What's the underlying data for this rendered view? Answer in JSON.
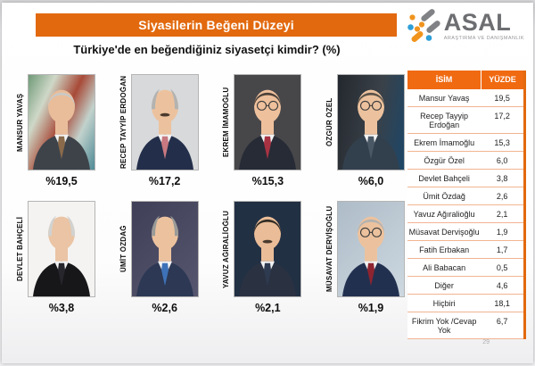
{
  "header": {
    "title": "Siyasilerin Beğeni Düzeyi"
  },
  "logo": {
    "name": "ASAL",
    "subtitle": "ARAŞTIRMA VE DANIŞMANLIK"
  },
  "question": "Türkiye'de en beğendiğiniz siyasetçi kimdir? (%)",
  "page_number": "29",
  "colors": {
    "accent_orange": "#E2690E",
    "table_header_orange": "#F06A12",
    "table_row_border": "#F2B491",
    "logo_gray": "#808285",
    "logo_orange": "#F0941E",
    "logo_blue": "#2E9FD8"
  },
  "politicians": [
    {
      "name": "MANSUR YAVAŞ",
      "pct": "%19,5",
      "photo": {
        "bg": "linear-gradient(115deg,#6f9a78 0%,#cfd8c8 25%,#a84a38 50%,#c2d2cc 72%,#4f8a96 100%)",
        "suit": "#3e434a",
        "tie": "#8a6a4a",
        "hair": "full",
        "hair_color": "#c9c9c7",
        "skin": "#e9bd9a",
        "glasses": false,
        "mustache": false
      }
    },
    {
      "name": "RECEP TAYYİP ERDOĞAN",
      "pct": "%17,2",
      "photo": {
        "bg": "#d7d9db",
        "suit": "#232f4a",
        "tie": "#c87880",
        "hair": "sides",
        "hair_color": "#b3b3b1",
        "skin": "#ecc29e",
        "glasses": false,
        "mustache": true
      }
    },
    {
      "name": "EKREM İMAMOĞLU",
      "pct": "%15,3",
      "photo": {
        "bg": "#47474a",
        "suit": "#262b36",
        "tie": "#a83242",
        "hair": "full",
        "hair_color": "#4b4038",
        "skin": "#eec09c",
        "glasses": true,
        "mustache": false
      }
    },
    {
      "name": "ÖZGÜR ÖZEL",
      "pct": "%6,0",
      "photo": {
        "bg": "linear-gradient(100deg,#23282e 0%,#3a4148 55%,#1c4668 100%)",
        "suit": "#32404e",
        "tie": "#4a5866",
        "hair": "full",
        "hair_color": "#5a5248",
        "skin": "#e6b astonishing",
        "glasses": true,
        "mustache": false
      }
    },
    {
      "name": "DEVLET BAHÇELİ",
      "pct": "%3,8",
      "photo": {
        "bg": "#f4f3f1",
        "suit": "#17171a",
        "tie": "#26262c",
        "hair": "sides",
        "hair_color": "#d2d2d0",
        "skin": "#eac4a4",
        "glasses": false,
        "mustache": false
      }
    },
    {
      "name": "ÜMİT ÖZDAĞ",
      "pct": "%2,6",
      "photo": {
        "bg": "linear-gradient(135deg,#3f3f58,#56566e)",
        "suit": "#2c3854",
        "tie": "#3e72b8",
        "hair": "sides",
        "hair_color": "#9a9a98",
        "skin": "#ecc29e",
        "glasses": false,
        "mustache": false
      }
    },
    {
      "name": "YAVUZ AĞIRALİOĞLU",
      "pct": "%2,1",
      "photo": {
        "bg": "#223044",
        "suit": "#2a3242",
        "tie": "#2e3a50",
        "hair": "full",
        "hair_color": "#332c24",
        "skin": "#eabd98",
        "glasses": false,
        "mustache": true
      }
    },
    {
      "name": "MÜSAVAT DERVİŞOĞLU",
      "pct": "%1,9",
      "photo": {
        "bg": "linear-gradient(135deg,#aebcc8,#cdd8e0)",
        "suit": "#223050",
        "tie": "#8e2430",
        "hair": "full",
        "hair_color": "#b2b2b0",
        "skin": "#ecc29e",
        "glasses": true,
        "mustache": false
      }
    }
  ],
  "table": {
    "columns": [
      "İSİM",
      "YÜZDE"
    ],
    "rows": [
      {
        "name": "Mansur Yavaş",
        "value": "19,5"
      },
      {
        "name": "Recep Tayyip Erdoğan",
        "value": "17,2"
      },
      {
        "name": "Ekrem İmamoğlu",
        "value": "15,3"
      },
      {
        "name": "Özgür Özel",
        "value": "6,0"
      },
      {
        "name": "Devlet Bahçeli",
        "value": "3,8"
      },
      {
        "name": "Ümit Özdağ",
        "value": "2,6"
      },
      {
        "name": "Yavuz Ağıralioğlu",
        "value": "2,1"
      },
      {
        "name": "Müsavat Dervişoğlu",
        "value": "1,9"
      },
      {
        "name": "Fatih Erbakan",
        "value": "1,7"
      },
      {
        "name": "Ali Babacan",
        "value": "0,5"
      },
      {
        "name": "Diğer",
        "value": "4,6"
      },
      {
        "name": "Hiçbiri",
        "value": "18,1"
      },
      {
        "name": "Fikrim Yok /Cevap Yok",
        "value": "6,7"
      }
    ]
  },
  "chart_data": {
    "type": "table",
    "title": "Siyasilerin Beğeni Düzeyi",
    "subtitle": "Türkiye'de en beğendiğiniz siyasetçi kimdir? (%)",
    "columns": [
      "İSİM",
      "YÜZDE"
    ],
    "categories": [
      "Mansur Yavaş",
      "Recep Tayyip Erdoğan",
      "Ekrem İmamoğlu",
      "Özgür Özel",
      "Devlet Bahçeli",
      "Ümit Özdağ",
      "Yavuz Ağıralioğlu",
      "Müsavat Dervişoğlu",
      "Fatih Erbakan",
      "Ali Babacan",
      "Diğer",
      "Hiçbiri",
      "Fikrim Yok /Cevap Yok"
    ],
    "values": [
      19.5,
      17.2,
      15.3,
      6.0,
      3.8,
      2.6,
      2.1,
      1.9,
      1.7,
      0.5,
      4.6,
      18.1,
      6.7
    ]
  }
}
